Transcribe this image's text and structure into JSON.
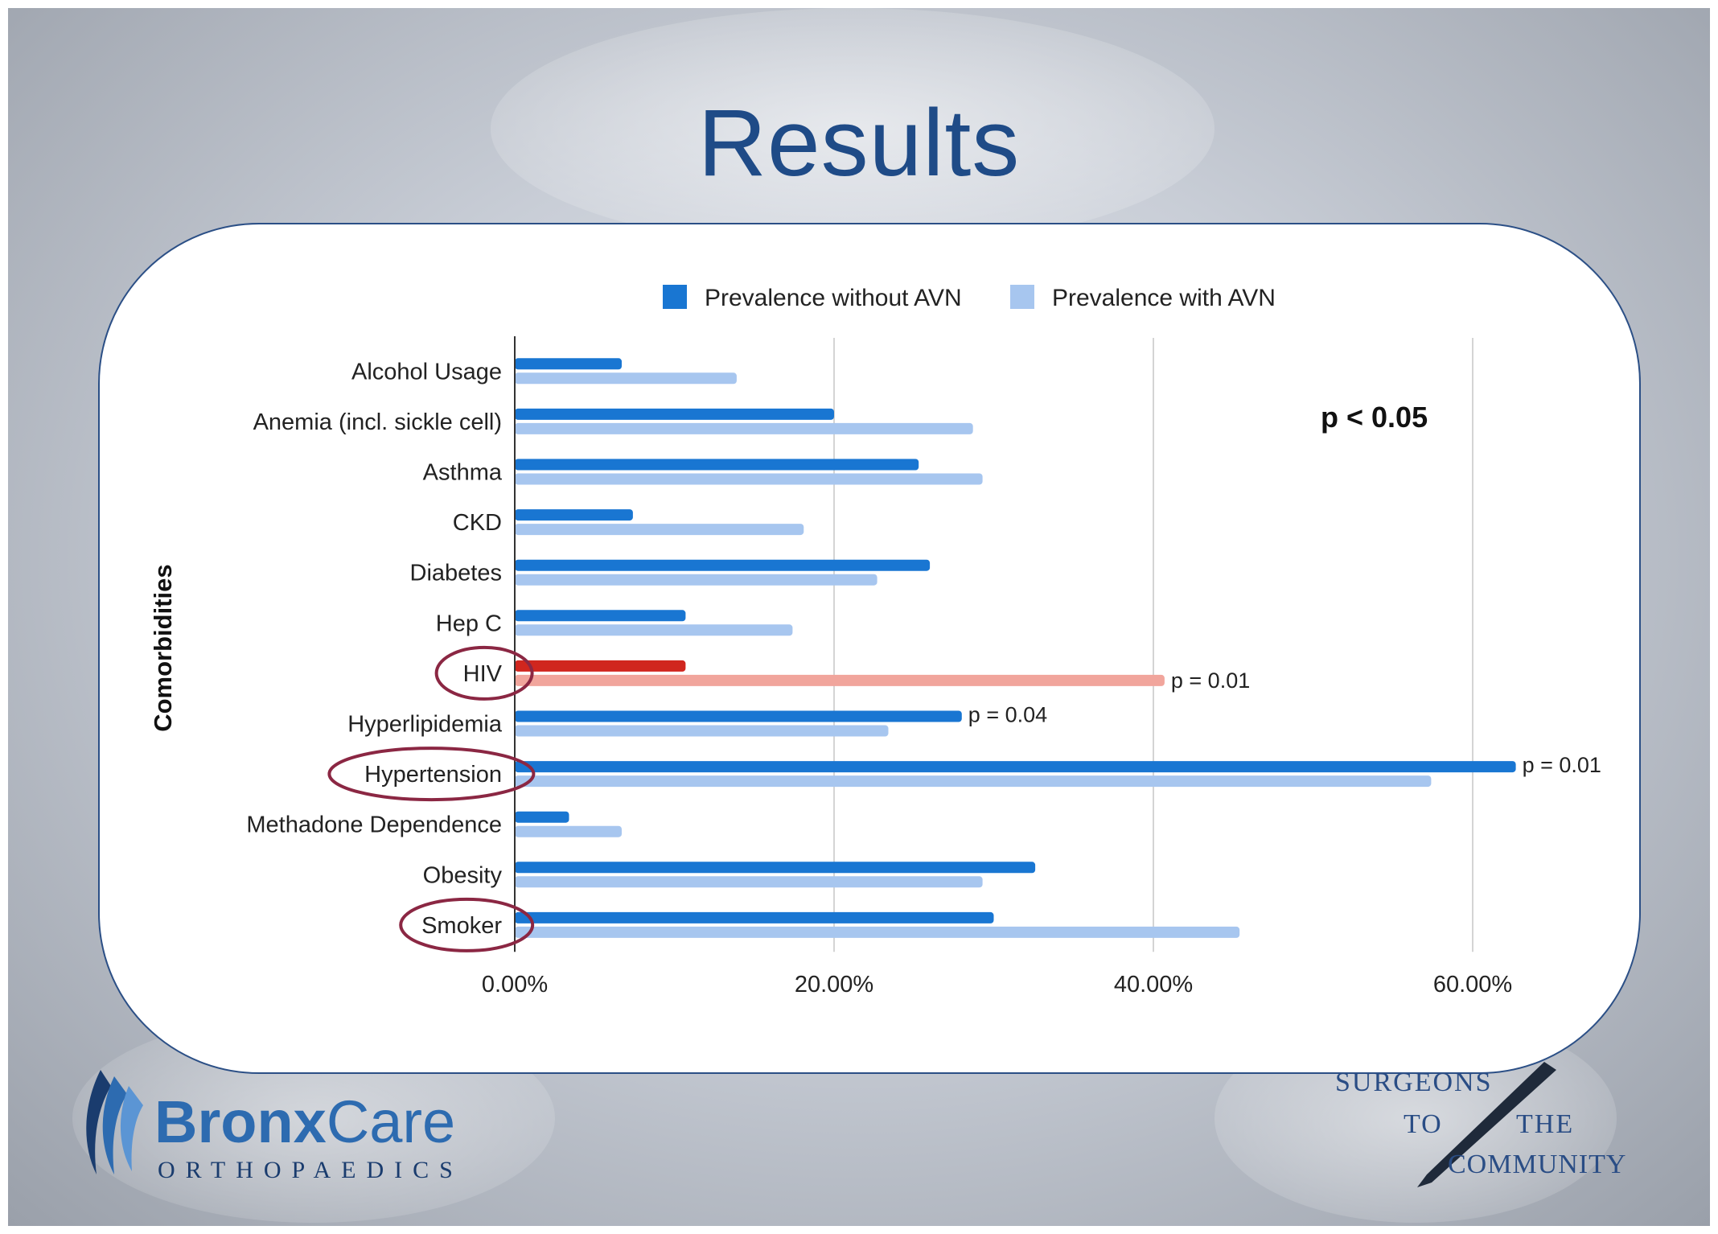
{
  "slide": {
    "title": "Results",
    "note": "p < 0.05"
  },
  "logos": {
    "bronxcare": {
      "name_part1": "Bronx",
      "name_part2": "Care",
      "subtitle": "ORTHOPAEDICS",
      "color": "#2d6bb0",
      "dark_color": "#1a3c6e"
    },
    "surgeons": {
      "line1": "SURGEONS",
      "line2_left": "TO",
      "line2_right": "THE",
      "line3": "COMMUNITY",
      "color": "#2a4d85"
    }
  },
  "chart_data": {
    "type": "bar",
    "orientation": "horizontal",
    "title": "",
    "xlabel": "",
    "ylabel": "Comorbidities",
    "xlim": [
      0,
      0.6
    ],
    "xticks": [
      0,
      0.2,
      0.4,
      0.6
    ],
    "xtick_labels": [
      "0.00%",
      "20.00%",
      "40.00%",
      "60.00%"
    ],
    "grid": true,
    "legend_position": "top",
    "categories": [
      "Alcohol Usage",
      "Anemia (incl. sickle cell)",
      "Asthma",
      "CKD",
      "Diabetes",
      "Hep C",
      "HIV",
      "Hyperlipidemia",
      "Hypertension",
      "Methadone Dependence",
      "Obesity",
      "Smoker"
    ],
    "series": [
      {
        "name": "Prevalence without AVN",
        "color": "#1976d2",
        "values": [
          0.067,
          0.2,
          0.253,
          0.074,
          0.26,
          0.107,
          0.107,
          0.28,
          0.627,
          0.034,
          0.326,
          0.3
        ]
      },
      {
        "name": "Prevalence with AVN",
        "color": "#a7c6ef",
        "values": [
          0.139,
          0.287,
          0.293,
          0.181,
          0.227,
          0.174,
          0.407,
          0.234,
          0.574,
          0.067,
          0.293,
          0.454
        ]
      }
    ],
    "highlight": {
      "category": "HIV",
      "colors": [
        "#d0261e",
        "#f1a59c"
      ]
    },
    "circled_categories": [
      "HIV",
      "Hypertension",
      "Smoker"
    ],
    "annotations": [
      {
        "category": "HIV",
        "series": 1,
        "text": "p = 0.01"
      },
      {
        "category": "Hyperlipidemia",
        "series": 0,
        "text": "p = 0.04"
      },
      {
        "category": "Hypertension",
        "series": 0,
        "text": "p = 0.01"
      }
    ]
  }
}
